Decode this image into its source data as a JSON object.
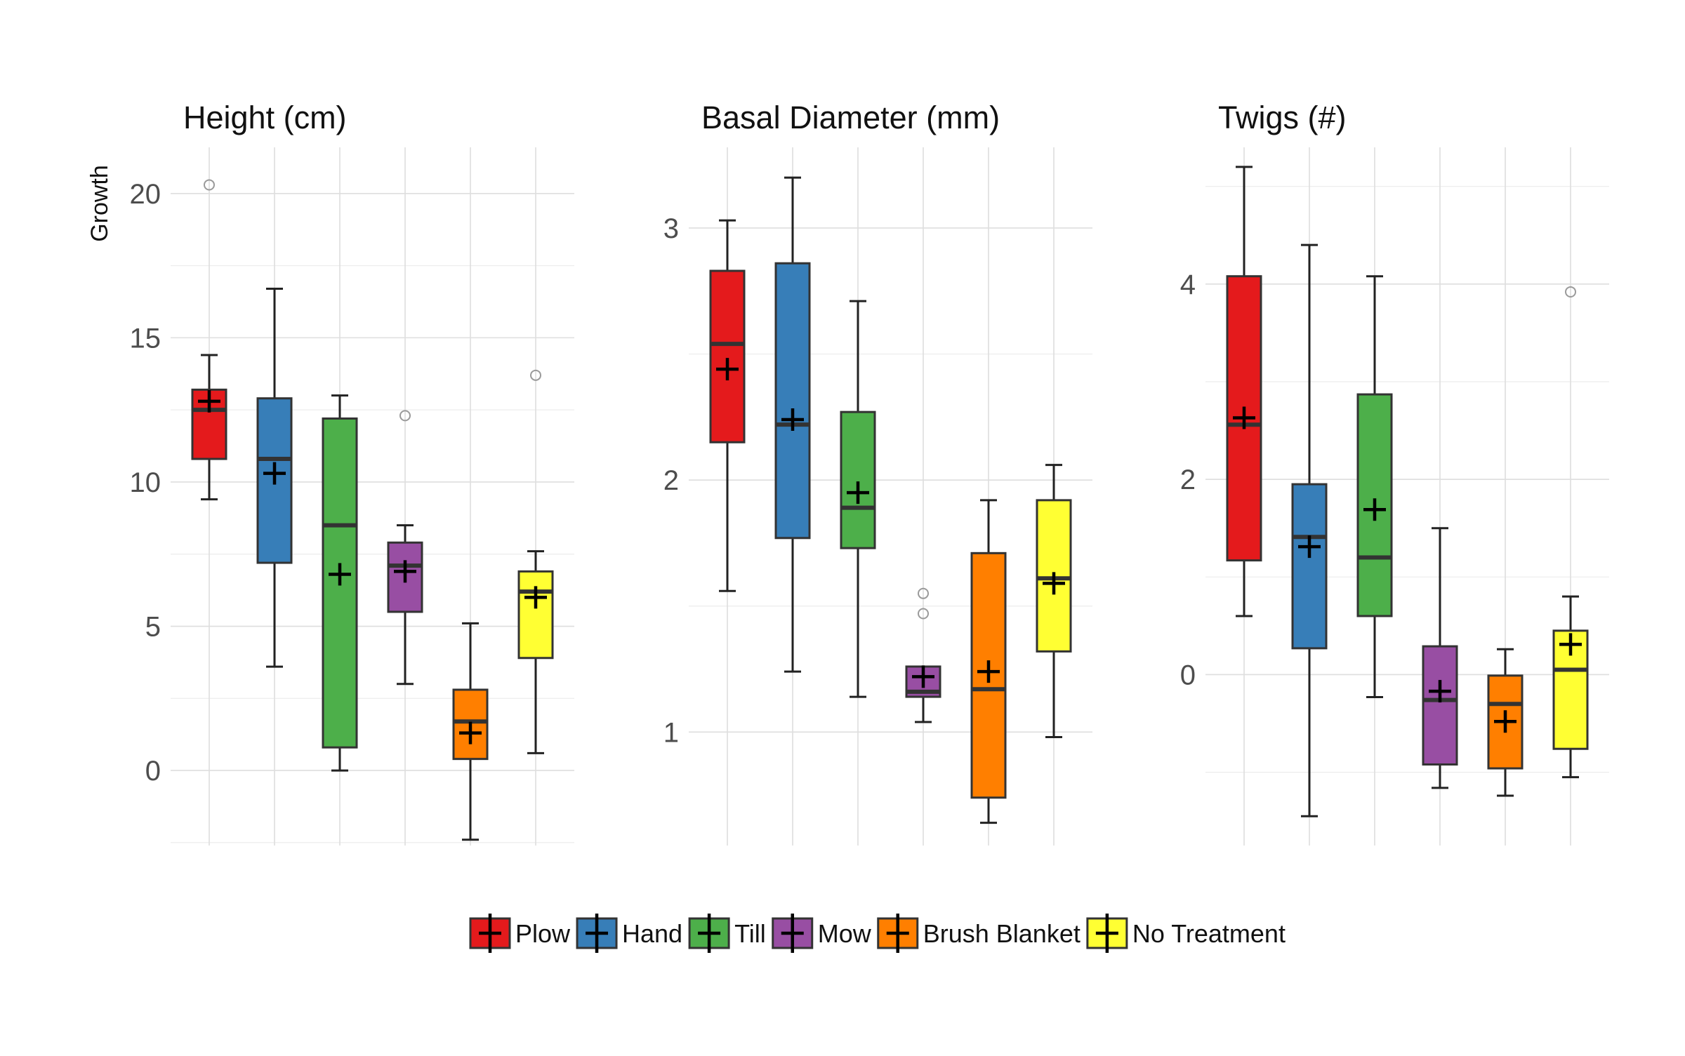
{
  "chart_data": {
    "type": "boxplot",
    "ylabel": "Growth",
    "categories": [
      "Plow",
      "Hand",
      "Till",
      "Mow",
      "Brush Blanket",
      "No Treatment"
    ],
    "colors": {
      "Plow": "#e41a1c",
      "Hand": "#377eb8",
      "Till": "#4daf4a",
      "Mow": "#984ea3",
      "Brush Blanket": "#ff7f00",
      "No Treatment": "#ffff33"
    },
    "legend": {
      "position": "bottom",
      "entries": [
        "Plow",
        "Hand",
        "Till",
        "Mow",
        "Brush Blanket",
        "No Treatment"
      ]
    },
    "grid": true,
    "mean_marker": "cross",
    "panels": [
      {
        "title": "Height (cm)",
        "ylim": [
          -2.6,
          21.6
        ],
        "yticks": [
          0,
          5,
          10,
          15,
          20
        ],
        "ytick_labels": [
          "0",
          "5",
          "10",
          "15",
          "20"
        ],
        "boxes": [
          {
            "category": "Plow",
            "whisker_low": 9.4,
            "q1": 10.8,
            "median": 12.5,
            "q3": 13.2,
            "whisker_high": 14.4,
            "mean": 12.8,
            "outliers": [
              20.3
            ]
          },
          {
            "category": "Hand",
            "whisker_low": 3.6,
            "q1": 7.2,
            "median": 10.8,
            "q3": 12.9,
            "whisker_high": 16.7,
            "mean": 10.3,
            "outliers": []
          },
          {
            "category": "Till",
            "whisker_low": 0.0,
            "q1": 0.8,
            "median": 8.5,
            "q3": 12.2,
            "whisker_high": 13.0,
            "mean": 6.8,
            "outliers": []
          },
          {
            "category": "Mow",
            "whisker_low": 3.0,
            "q1": 5.5,
            "median": 7.1,
            "q3": 7.9,
            "whisker_high": 8.5,
            "mean": 6.9,
            "outliers": [
              12.3
            ]
          },
          {
            "category": "Brush Blanket",
            "whisker_low": -2.4,
            "q1": 0.4,
            "median": 1.7,
            "q3": 2.8,
            "whisker_high": 5.1,
            "mean": 1.3,
            "outliers": []
          },
          {
            "category": "No Treatment",
            "whisker_low": 0.6,
            "q1": 3.9,
            "median": 6.2,
            "q3": 6.9,
            "whisker_high": 7.6,
            "mean": 6.0,
            "outliers": [
              13.7
            ]
          }
        ]
      },
      {
        "title": "Basal Diameter (mm)",
        "ylim": [
          0.55,
          3.32
        ],
        "yticks": [
          1,
          2,
          3
        ],
        "ytick_labels": [
          "1",
          "2",
          "3"
        ],
        "boxes": [
          {
            "category": "Plow",
            "whisker_low": 1.56,
            "q1": 2.15,
            "median": 2.54,
            "q3": 2.83,
            "whisker_high": 3.03,
            "mean": 2.44,
            "outliers": []
          },
          {
            "category": "Hand",
            "whisker_low": 1.24,
            "q1": 1.77,
            "median": 2.22,
            "q3": 2.86,
            "whisker_high": 3.2,
            "mean": 2.24,
            "outliers": []
          },
          {
            "category": "Till",
            "whisker_low": 1.14,
            "q1": 1.73,
            "median": 1.89,
            "q3": 2.27,
            "whisker_high": 2.71,
            "mean": 1.95,
            "outliers": []
          },
          {
            "category": "Mow",
            "whisker_low": 1.04,
            "q1": 1.14,
            "median": 1.16,
            "q3": 1.26,
            "whisker_high": 1.26,
            "mean": 1.22,
            "outliers": [
              1.47,
              1.55
            ]
          },
          {
            "category": "Brush Blanket",
            "whisker_low": 0.64,
            "q1": 0.74,
            "median": 1.17,
            "q3": 1.71,
            "whisker_high": 1.92,
            "mean": 1.24,
            "outliers": []
          },
          {
            "category": "No Treatment",
            "whisker_low": 0.98,
            "q1": 1.32,
            "median": 1.61,
            "q3": 1.92,
            "whisker_high": 2.06,
            "mean": 1.59,
            "outliers": []
          }
        ]
      },
      {
        "title": "Twigs (#)",
        "ylim": [
          -1.75,
          5.4
        ],
        "yticks": [
          0,
          2,
          4
        ],
        "ytick_labels": [
          "0",
          "2",
          "4"
        ],
        "boxes": [
          {
            "category": "Plow",
            "whisker_low": 0.6,
            "q1": 1.17,
            "median": 2.56,
            "q3": 4.08,
            "whisker_high": 5.2,
            "mean": 2.63,
            "outliers": []
          },
          {
            "category": "Hand",
            "whisker_low": -1.45,
            "q1": 0.27,
            "median": 1.41,
            "q3": 1.95,
            "whisker_high": 4.4,
            "mean": 1.31,
            "outliers": []
          },
          {
            "category": "Till",
            "whisker_low": -0.23,
            "q1": 0.6,
            "median": 1.2,
            "q3": 2.87,
            "whisker_high": 4.08,
            "mean": 1.69,
            "outliers": []
          },
          {
            "category": "Mow",
            "whisker_low": -1.16,
            "q1": -0.92,
            "median": -0.26,
            "q3": 0.29,
            "whisker_high": 1.5,
            "mean": -0.17,
            "outliers": []
          },
          {
            "category": "Brush Blanket",
            "whisker_low": -1.24,
            "q1": -0.96,
            "median": -0.3,
            "q3": -0.01,
            "whisker_high": 0.26,
            "mean": -0.48,
            "outliers": []
          },
          {
            "category": "No Treatment",
            "whisker_low": -1.05,
            "q1": -0.76,
            "median": 0.05,
            "q3": 0.45,
            "whisker_high": 0.8,
            "mean": 0.31,
            "outliers": [
              3.92
            ]
          }
        ]
      }
    ]
  }
}
